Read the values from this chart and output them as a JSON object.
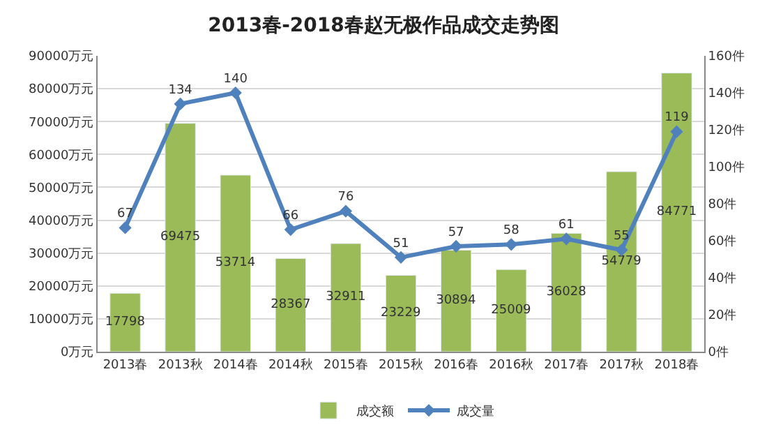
{
  "chart_data": {
    "type": "bar",
    "title": "2013春-2018春赵无极作品成交走势图",
    "categories": [
      "2013春",
      "2013秋",
      "2014春",
      "2014秋",
      "2015春",
      "2015秋",
      "2016春",
      "2016秋",
      "2017春",
      "2017秋",
      "2018春"
    ],
    "series": [
      {
        "name": "成交额",
        "color": "#9bbb59",
        "values": [
          17798,
          69475,
          53714,
          28367,
          32911,
          23229,
          30894,
          25009,
          36028,
          54779,
          84771
        ]
      },
      {
        "name": "成交量",
        "type": "line",
        "axis": "y2",
        "color": "#4f81bd",
        "marker": "diamond",
        "values": [
          67,
          134,
          140,
          66,
          76,
          51,
          57,
          58,
          61,
          55,
          119
        ]
      }
    ],
    "ylim": [
      0,
      90000
    ],
    "yticks": [
      {
        "value": 0,
        "label": "0万元"
      },
      {
        "value": 10000,
        "label": "10000万元"
      },
      {
        "value": 20000,
        "label": "20000万元"
      },
      {
        "value": 30000,
        "label": "30000万元"
      },
      {
        "value": 40000,
        "label": "40000万元"
      },
      {
        "value": 50000,
        "label": "50000万元"
      },
      {
        "value": 60000,
        "label": "60000万元"
      },
      {
        "value": 70000,
        "label": "70000万元"
      },
      {
        "value": 80000,
        "label": "80000万元"
      },
      {
        "value": 90000,
        "label": "90000万元"
      }
    ],
    "y2lim": [
      0,
      160
    ],
    "y2ticks": [
      {
        "value": 0,
        "label": "0件"
      },
      {
        "value": 20,
        "label": "20件"
      },
      {
        "value": 40,
        "label": "40件"
      },
      {
        "value": 60,
        "label": "60件"
      },
      {
        "value": 80,
        "label": "80件"
      },
      {
        "value": 100,
        "label": "100件"
      },
      {
        "value": 120,
        "label": "120件"
      },
      {
        "value": 140,
        "label": "140件"
      },
      {
        "value": 160,
        "label": "160件"
      }
    ],
    "grid": "y",
    "legend": "bottom",
    "data_labels": true
  }
}
